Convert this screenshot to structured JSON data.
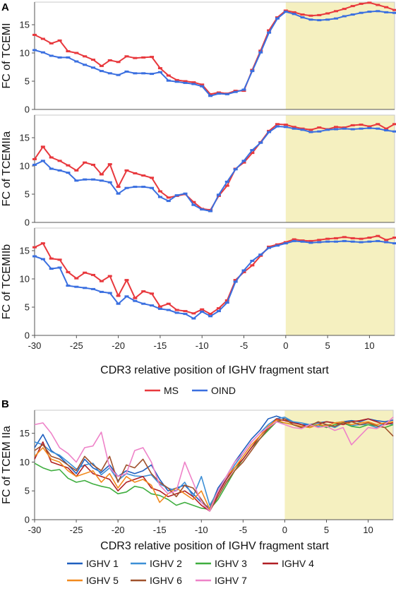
{
  "panel_labels": {
    "a": "A",
    "b": "B"
  },
  "colors": {
    "highlight": "#f5f0c0",
    "frame": "#c8c8c8",
    "MS": "#e8383d",
    "OIND": "#3a6fe0"
  },
  "chart_data": [
    {
      "type": "line",
      "panel": "A",
      "xlabel": "CDR3 relative position of IGHV fragment start",
      "xlim": [
        -30,
        13
      ],
      "xticks": [
        -30,
        -25,
        -20,
        -15,
        -10,
        -5,
        0,
        5,
        10
      ],
      "highlight_x": [
        0,
        13
      ],
      "legend": [
        "MS",
        "OIND"
      ],
      "subplots": [
        {
          "ylabel": "FC of TCEMI",
          "ylim": [
            0,
            19
          ],
          "yticks": [
            0,
            5,
            10,
            15
          ],
          "x": [
            -30,
            -29,
            -28,
            -27,
            -26,
            -25,
            -24,
            -23,
            -22,
            -21,
            -20,
            -19,
            -18,
            -17,
            -16,
            -15,
            -14,
            -13,
            -12,
            -11,
            -10,
            -9,
            -8,
            -7,
            -6,
            -5,
            -4,
            -3,
            -2,
            -1,
            0,
            1,
            2,
            3,
            4,
            5,
            6,
            7,
            8,
            9,
            10,
            11,
            12,
            13
          ],
          "series": [
            {
              "name": "MS",
              "values": [
                13.2,
                12.5,
                11.7,
                12.2,
                10.3,
                10.0,
                9.4,
                8.8,
                7.7,
                8.7,
                8.4,
                9.4,
                9.1,
                9.2,
                9.3,
                7.3,
                6.0,
                5.2,
                5.0,
                4.8,
                4.4,
                2.7,
                3.0,
                2.8,
                3.3,
                3.3,
                7.0,
                10.4,
                14.0,
                16.3,
                17.5,
                17.2,
                16.8,
                16.6,
                16.7,
                17.0,
                17.4,
                17.8,
                18.3,
                18.7,
                18.9,
                18.5,
                18.1,
                17.6
              ]
            },
            {
              "name": "OIND",
              "values": [
                10.5,
                10.1,
                9.5,
                9.2,
                9.2,
                8.5,
                7.9,
                7.4,
                6.8,
                6.4,
                6.1,
                6.7,
                6.4,
                6.4,
                6.3,
                6.6,
                5.1,
                4.9,
                4.7,
                4.5,
                4.1,
                2.4,
                2.8,
                2.7,
                3.1,
                3.5,
                6.8,
                10.1,
                13.6,
                16.1,
                17.3,
                16.9,
                16.3,
                15.9,
                15.8,
                15.9,
                16.1,
                16.5,
                16.8,
                17.1,
                17.3,
                17.4,
                17.2,
                17.1
              ]
            }
          ]
        },
        {
          "ylabel": "FC of TCEMIIa",
          "ylim": [
            0,
            19
          ],
          "yticks": [
            0,
            5,
            10,
            15
          ],
          "x": [
            -30,
            -29,
            -28,
            -27,
            -26,
            -25,
            -24,
            -23,
            -22,
            -21,
            -20,
            -19,
            -18,
            -17,
            -16,
            -15,
            -14,
            -13,
            -12,
            -11,
            -10,
            -9,
            -8,
            -7,
            -6,
            -5,
            -4,
            -3,
            -2,
            -1,
            0,
            1,
            2,
            3,
            4,
            5,
            6,
            7,
            8,
            9,
            10,
            11,
            12,
            13
          ],
          "series": [
            {
              "name": "MS",
              "values": [
                11.2,
                13.4,
                11.5,
                10.9,
                10.1,
                9.2,
                10.6,
                10.2,
                8.5,
                10.3,
                6.3,
                9.2,
                8.7,
                8.3,
                7.9,
                5.5,
                4.4,
                4.7,
                5.0,
                3.6,
                2.4,
                2.2,
                4.7,
                6.5,
                9.5,
                10.6,
                12.3,
                14.2,
                16.2,
                17.4,
                17.3,
                16.9,
                16.6,
                16.4,
                16.8,
                16.5,
                16.9,
                16.8,
                17.2,
                17.3,
                17.0,
                17.4,
                16.6,
                17.4
              ]
            },
            {
              "name": "OIND",
              "values": [
                10.2,
                10.9,
                9.5,
                9.2,
                8.8,
                7.4,
                7.6,
                7.6,
                7.4,
                7.1,
                5.1,
                6.1,
                6.3,
                6.3,
                6.1,
                4.5,
                3.8,
                4.8,
                5.1,
                3.1,
                2.3,
                2.0,
                4.9,
                7.2,
                9.4,
                10.9,
                12.8,
                14.1,
                16.0,
                17.0,
                16.9,
                16.6,
                16.4,
                16.0,
                16.1,
                16.4,
                16.5,
                16.6,
                16.5,
                16.6,
                16.7,
                16.6,
                16.3,
                16.1
              ]
            }
          ]
        },
        {
          "ylabel": "FC of TCEMIIb",
          "ylim": [
            0,
            19
          ],
          "yticks": [
            0,
            5,
            10,
            15
          ],
          "x": [
            -30,
            -29,
            -28,
            -27,
            -26,
            -25,
            -24,
            -23,
            -22,
            -21,
            -20,
            -19,
            -18,
            -17,
            -16,
            -15,
            -14,
            -13,
            -12,
            -11,
            -10,
            -9,
            -8,
            -7,
            -6,
            -5,
            -4,
            -3,
            -2,
            -1,
            0,
            1,
            2,
            3,
            4,
            5,
            6,
            7,
            8,
            9,
            10,
            11,
            12,
            13
          ],
          "series": [
            {
              "name": "MS",
              "values": [
                15.6,
                16.3,
                13.6,
                13.4,
                11.2,
                10.1,
                11.1,
                10.7,
                9.6,
                10.5,
                7.0,
                9.8,
                6.6,
                7.8,
                7.4,
                5.1,
                5.6,
                4.5,
                4.3,
                3.9,
                4.6,
                3.8,
                4.8,
                6.2,
                9.8,
                11.2,
                12.4,
                14.1,
                15.7,
                16.1,
                16.5,
                17.0,
                16.8,
                16.7,
                16.9,
                17.1,
                17.2,
                17.4,
                17.2,
                17.1,
                17.3,
                17.6,
                16.9,
                17.3
              ]
            },
            {
              "name": "OIND",
              "values": [
                14.0,
                13.5,
                11.8,
                12.0,
                8.8,
                8.6,
                8.4,
                8.2,
                7.7,
                7.5,
                5.6,
                6.9,
                6.1,
                5.6,
                5.3,
                4.7,
                4.5,
                4.0,
                3.8,
                3.0,
                4.2,
                3.4,
                4.3,
                5.8,
                9.5,
                11.5,
                13.2,
                14.3,
                15.5,
                15.9,
                16.3,
                16.7,
                16.6,
                16.4,
                16.5,
                16.6,
                16.6,
                16.7,
                16.6,
                16.5,
                16.6,
                16.7,
                16.5,
                16.3
              ]
            }
          ]
        }
      ]
    },
    {
      "type": "line",
      "panel": "B",
      "ylabel": "FC of TCEM IIa",
      "xlabel": "CDR3 relative position of IGHV fragment start",
      "xlim": [
        -30,
        13
      ],
      "ylim": [
        0,
        19
      ],
      "xticks": [
        -30,
        -25,
        -20,
        -15,
        -10,
        -5,
        0,
        5,
        10
      ],
      "yticks": [
        0,
        5,
        10,
        15
      ],
      "highlight_x": [
        0,
        13
      ],
      "x": [
        -30,
        -29,
        -28,
        -27,
        -26,
        -25,
        -24,
        -23,
        -22,
        -21,
        -20,
        -19,
        -18,
        -17,
        -16,
        -15,
        -14,
        -13,
        -12,
        -11,
        -10,
        -9,
        -8,
        -7,
        -6,
        -5,
        -4,
        -3,
        -2,
        -1,
        0,
        1,
        2,
        3,
        4,
        5,
        6,
        7,
        8,
        9,
        10,
        11,
        12,
        13
      ],
      "series": [
        {
          "name": "IGHV 1",
          "color": "#1f5fbf",
          "values": [
            12.5,
            14.8,
            12.0,
            11.0,
            9.5,
            8.0,
            10.5,
            9.0,
            8.2,
            9.5,
            7.5,
            8.5,
            8.0,
            8.5,
            9.5,
            7.0,
            5.0,
            5.5,
            6.0,
            4.5,
            3.0,
            2.0,
            5.5,
            7.5,
            10.0,
            12.0,
            14.0,
            15.5,
            17.5,
            18.0,
            17.5,
            17.0,
            16.5,
            16.5,
            16.8,
            17.0,
            16.8,
            17.0,
            17.2,
            17.0,
            17.5,
            17.2,
            17.0,
            17.3
          ]
        },
        {
          "name": "IGHV 2",
          "color": "#3d8fd6",
          "values": [
            13.5,
            13.0,
            11.8,
            11.2,
            10.0,
            8.8,
            9.5,
            9.8,
            7.8,
            9.0,
            6.8,
            8.0,
            7.6,
            7.5,
            7.8,
            6.2,
            5.5,
            5.0,
            6.5,
            4.0,
            7.5,
            2.5,
            5.0,
            7.0,
            9.5,
            11.5,
            13.5,
            15.0,
            16.5,
            17.5,
            17.8,
            17.0,
            16.8,
            16.5,
            16.2,
            16.5,
            16.0,
            16.8,
            16.3,
            16.5,
            16.5,
            16.0,
            16.8,
            16.5
          ]
        },
        {
          "name": "IGHV 3",
          "color": "#3fae3f",
          "values": [
            9.8,
            9.0,
            8.5,
            8.7,
            7.2,
            6.5,
            6.8,
            6.2,
            5.8,
            5.5,
            4.5,
            4.8,
            5.8,
            5.5,
            4.5,
            4.2,
            3.5,
            2.5,
            3.0,
            2.5,
            2.0,
            1.8,
            3.5,
            6.0,
            8.5,
            10.5,
            12.5,
            14.0,
            15.5,
            17.0,
            16.8,
            16.5,
            16.0,
            16.3,
            16.5,
            16.0,
            16.5,
            16.8,
            16.2,
            16.0,
            16.5,
            16.3,
            16.0,
            16.5
          ]
        },
        {
          "name": "IGHV 4",
          "color": "#b01f24",
          "values": [
            10.5,
            13.5,
            10.0,
            9.5,
            9.0,
            7.5,
            9.5,
            8.0,
            7.5,
            7.0,
            5.0,
            6.5,
            7.0,
            7.5,
            5.5,
            5.0,
            4.0,
            4.5,
            5.0,
            4.0,
            2.5,
            1.5,
            4.5,
            7.0,
            9.0,
            10.5,
            12.5,
            14.5,
            16.0,
            17.5,
            17.2,
            16.8,
            16.5,
            16.0,
            16.5,
            17.0,
            16.8,
            16.5,
            17.0,
            17.2,
            17.5,
            17.0,
            16.5,
            16.8
          ]
        },
        {
          "name": "IGHV 5",
          "color": "#f28a1e",
          "values": [
            11.0,
            12.5,
            10.5,
            10.0,
            8.5,
            7.5,
            8.0,
            8.5,
            6.5,
            8.0,
            5.5,
            7.5,
            6.5,
            7.0,
            6.0,
            3.0,
            4.5,
            5.5,
            4.5,
            3.5,
            5.0,
            1.8,
            5.0,
            7.5,
            9.0,
            11.0,
            13.0,
            14.5,
            16.2,
            17.3,
            16.8,
            16.5,
            16.2,
            16.0,
            16.5,
            16.3,
            16.8,
            17.0,
            16.5,
            16.8,
            17.0,
            16.5,
            16.8,
            17.0
          ]
        },
        {
          "name": "IGHV 6",
          "color": "#a0522d",
          "values": [
            12.0,
            13.0,
            11.0,
            10.5,
            9.5,
            8.5,
            11.0,
            9.5,
            8.5,
            11.0,
            6.5,
            9.5,
            9.0,
            10.5,
            8.0,
            6.5,
            5.5,
            4.0,
            6.0,
            5.5,
            3.5,
            1.5,
            4.0,
            6.5,
            8.5,
            10.0,
            12.0,
            14.0,
            15.8,
            17.0,
            17.5,
            16.5,
            16.0,
            16.3,
            17.0,
            16.5,
            16.2,
            16.8,
            17.0,
            16.5,
            16.8,
            16.3,
            16.0,
            14.5
          ]
        },
        {
          "name": "IGHV 7",
          "color": "#ee82c8",
          "values": [
            16.5,
            16.8,
            15.0,
            12.5,
            11.5,
            10.0,
            12.5,
            12.8,
            15.2,
            9.0,
            7.5,
            8.0,
            12.0,
            12.5,
            10.0,
            6.0,
            4.5,
            5.0,
            10.0,
            6.5,
            3.0,
            1.5,
            5.0,
            7.5,
            10.0,
            11.5,
            13.5,
            15.0,
            16.0,
            17.0,
            16.5,
            16.0,
            15.8,
            16.5,
            16.0,
            16.2,
            15.5,
            16.0,
            13.0,
            14.5,
            16.0,
            15.8,
            16.5,
            17.8
          ]
        }
      ]
    }
  ]
}
